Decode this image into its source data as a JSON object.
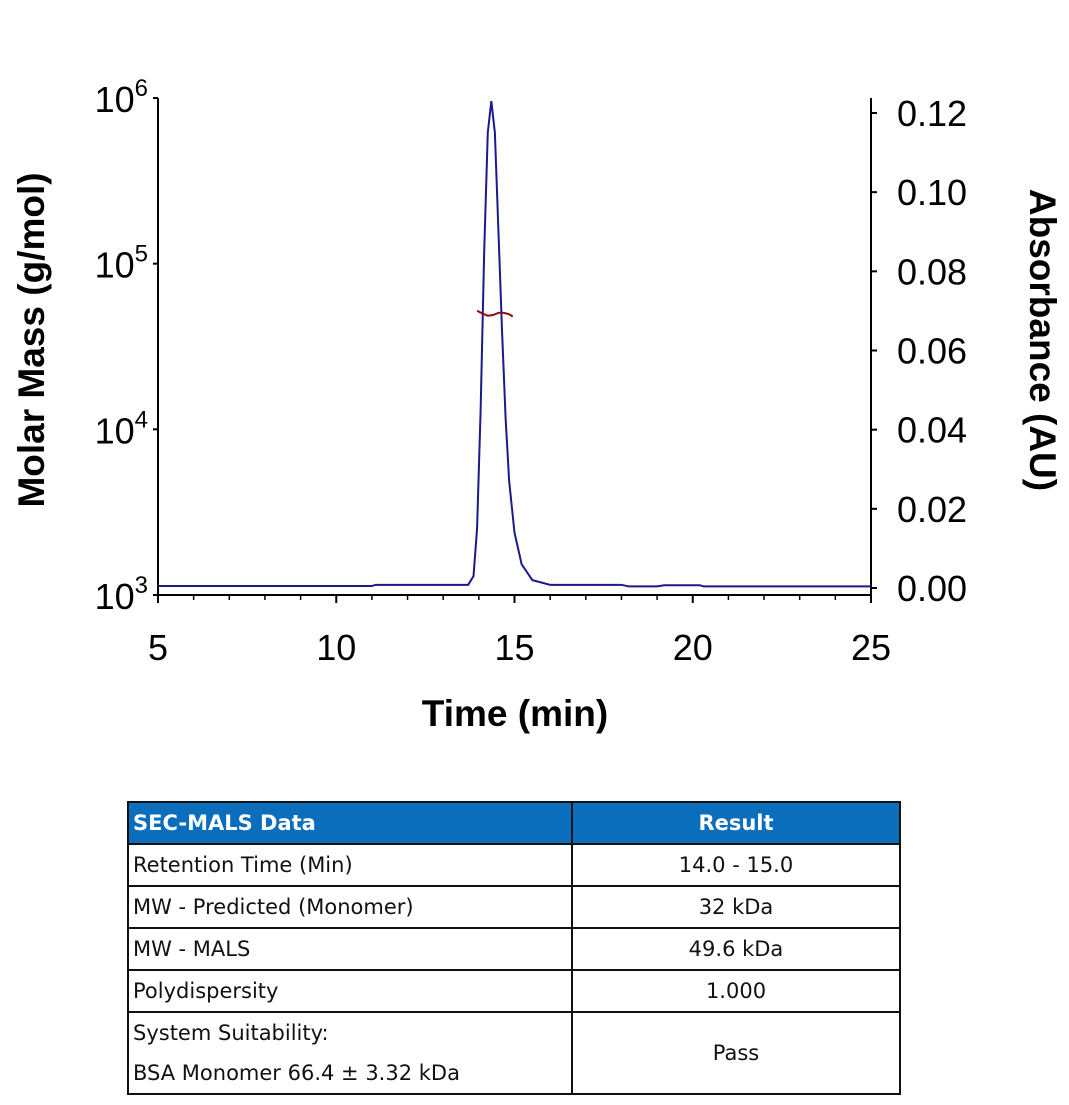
{
  "chart_data": {
    "type": "line",
    "xlabel": "Time (min)",
    "ylabel": "Molar Mass (g/mol)",
    "y2label": "Absorbance (AU)",
    "xlim": [
      5,
      25
    ],
    "ylim": [
      1000,
      1000000
    ],
    "yscale": "log",
    "y2lim": [
      0,
      0.12
    ],
    "xticks": [
      "5",
      "10",
      "15",
      "20",
      "25"
    ],
    "yticks": [
      {
        "base": "10",
        "exp": "3"
      },
      {
        "base": "10",
        "exp": "4"
      },
      {
        "base": "10",
        "exp": "5"
      },
      {
        "base": "10",
        "exp": "6"
      }
    ],
    "y2ticks": [
      "0.00",
      "0.02",
      "0.04",
      "0.06",
      "0.08",
      "0.10",
      "0.12"
    ],
    "grid": false,
    "colors": {
      "absorbance": "#1a1a8c",
      "mass": "#8b1010"
    },
    "series": [
      {
        "axis": "right",
        "x": [
          5,
          11,
          11.1,
          13.7,
          13.85,
          13.95,
          14.05,
          14.15,
          14.25,
          14.35,
          14.45,
          14.55,
          14.65,
          14.75,
          14.85,
          15.0,
          15.2,
          15.5,
          16,
          18,
          18.2,
          19,
          19.2,
          20.2,
          20.3,
          25
        ],
        "values": [
          0.0005,
          0.0005,
          0.0008,
          0.0008,
          0.003,
          0.015,
          0.045,
          0.085,
          0.115,
          0.123,
          0.115,
          0.09,
          0.065,
          0.043,
          0.027,
          0.014,
          0.006,
          0.002,
          0.0008,
          0.0008,
          0.0004,
          0.0004,
          0.0007,
          0.0007,
          0.0004,
          0.0004
        ]
      },
      {
        "axis": "left",
        "x": [
          13.95,
          14.1,
          14.25,
          14.4,
          14.55,
          14.7,
          14.85,
          14.95
        ],
        "values": [
          52000,
          50000,
          48500,
          49000,
          50500,
          50500,
          49500,
          48000
        ]
      }
    ]
  },
  "table": {
    "headers": [
      "SEC-MALS Data",
      "Result"
    ],
    "rows": [
      [
        "Retention Time (Min)",
        "14.0 - 15.0"
      ],
      [
        "MW - Predicted (Monomer)",
        "32 kDa"
      ],
      [
        "MW - MALS",
        "49.6 kDa"
      ],
      [
        "Polydispersity",
        "1.000"
      ]
    ],
    "last_row": {
      "line1": "System Suitability:",
      "line2": "BSA Monomer 66.4 ± 3.32 kDa",
      "result": "Pass"
    }
  }
}
